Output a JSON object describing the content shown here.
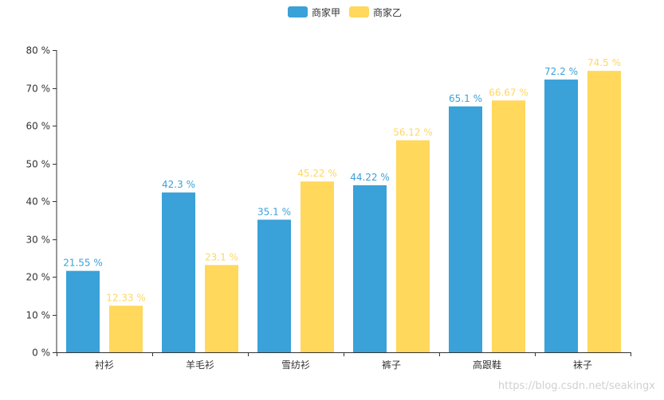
{
  "chart_data": {
    "type": "bar",
    "categories": [
      "衬衫",
      "羊毛衫",
      "雪纺衫",
      "裤子",
      "高跟鞋",
      "袜子"
    ],
    "series": [
      {
        "name": "商家甲",
        "color": "#3aa1d9",
        "values": [
          21.55,
          42.3,
          35.1,
          44.22,
          65.1,
          72.2
        ],
        "labels": [
          "21.55 %",
          "42.3 %",
          "35.1 %",
          "44.22 %",
          "65.1 %",
          "72.2 %"
        ]
      },
      {
        "name": "商家乙",
        "color": "#ffd85c",
        "values": [
          12.33,
          23.1,
          45.22,
          56.12,
          66.67,
          74.5
        ],
        "labels": [
          "12.33 %",
          "23.1 %",
          "45.22 %",
          "56.12 %",
          "66.67 %",
          "74.5 %"
        ]
      }
    ],
    "ylim": [
      0,
      80
    ],
    "yticks": [
      0,
      10,
      20,
      30,
      40,
      50,
      60,
      70,
      80
    ],
    "ytick_labels": [
      "0 %",
      "10 %",
      "20 %",
      "30 %",
      "40 %",
      "50 %",
      "60 %",
      "70 %",
      "80 %"
    ],
    "legend_position": "top-center",
    "grid": false
  },
  "watermark": "https://blog.csdn.net/seakingx"
}
